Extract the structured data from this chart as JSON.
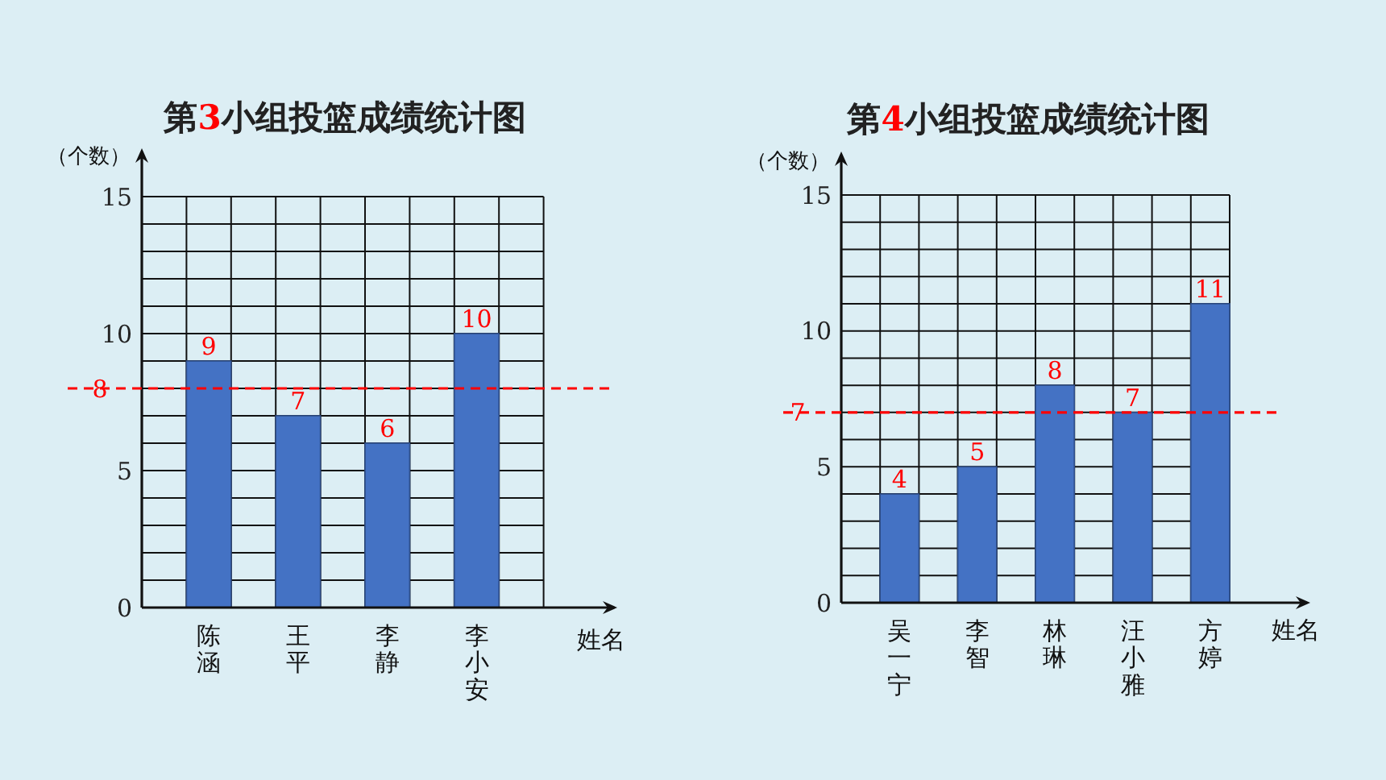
{
  "chart_data": [
    {
      "type": "bar",
      "title": "第3小组投篮成绩统计图",
      "ylabel": "（个数）",
      "xlabel": "姓名",
      "categories": [
        "陈涵",
        "王平",
        "李静",
        "李小安"
      ],
      "values": [
        9,
        7,
        6,
        10
      ],
      "color": "#4472c4",
      "ylim": [
        0,
        15
      ],
      "yticks": [
        0,
        {
          "value": 1,
          "label": null
        },
        {
          "value": 2,
          "label": null
        },
        {
          "value": 3,
          "label": null
        },
        {
          "value": 4,
          "label": null
        },
        5,
        {
          "value": 6,
          "label": null
        },
        {
          "value": 7,
          "label": null
        },
        {
          "value": 8,
          "label": null
        },
        {
          "value": 9,
          "label": null
        },
        10,
        {
          "value": 11,
          "label": null
        },
        {
          "value": 12,
          "label": null
        },
        {
          "value": 13,
          "label": null
        },
        {
          "value": 14,
          "label": null
        },
        15
      ],
      "grid": true,
      "data_labels": true,
      "ref_lines": [
        {
          "axis": "y",
          "value": 8,
          "label": "8",
          "color": "#ff0000",
          "line_style": "dashed"
        }
      ]
    },
    {
      "type": "bar",
      "title": "第4小组投篮成绩统计图",
      "ylabel": "（个数）",
      "xlabel": "姓名",
      "categories": [
        "吴一宁",
        "李智",
        "林琳",
        "汪小雅",
        "方婷"
      ],
      "values": [
        4,
        5,
        8,
        7,
        11
      ],
      "color": "#4472c4",
      "ylim": [
        0,
        15
      ],
      "yticks": [
        0,
        {
          "value": 1,
          "label": null
        },
        {
          "value": 2,
          "label": null
        },
        {
          "value": 3,
          "label": null
        },
        {
          "value": 4,
          "label": null
        },
        5,
        {
          "value": 6,
          "label": null
        },
        {
          "value": 7,
          "label": null
        },
        {
          "value": 8,
          "label": null
        },
        {
          "value": 9,
          "label": null
        },
        10,
        {
          "value": 11,
          "label": null
        },
        {
          "value": 12,
          "label": null
        },
        {
          "value": 13,
          "label": null
        },
        {
          "value": 14,
          "label": null
        },
        15
      ],
      "grid": true,
      "data_labels": true,
      "ref_lines": [
        {
          "axis": "y",
          "value": 7,
          "label": "7",
          "color": "#ff0000",
          "line_style": "dashed"
        }
      ]
    }
  ]
}
